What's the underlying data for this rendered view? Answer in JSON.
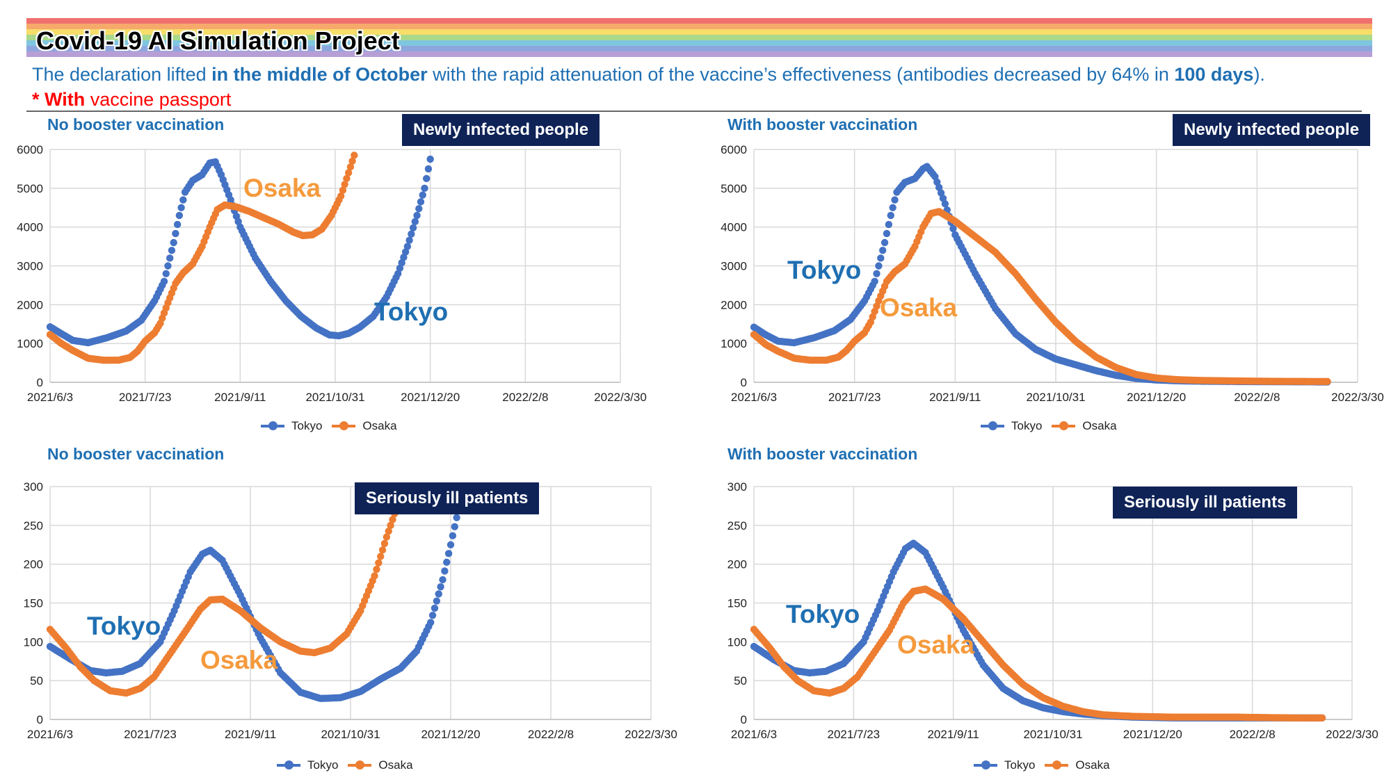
{
  "header": {
    "title": "Covid-19 AI Simulation Project",
    "desc_1": "The declaration lifted ",
    "desc_2": "in the middle of October",
    "desc_3": " with the rapid attenuation of the vaccine’s effectiveness (antibodies decreased by 64% in ",
    "desc_4": "100 days",
    "desc_5": ").",
    "note_star": "* With",
    "note_rest": " vaccine passport",
    "rainbow": [
      "#f07070",
      "#f6a96a",
      "#f7dd6a",
      "#a9d98a",
      "#7fc6e0",
      "#8ea6de",
      "#b79fd6"
    ]
  },
  "colors": {
    "tokyo": "#4472c4",
    "osaka": "#ed7d31",
    "tokyo_label": "#1f6fb2",
    "osaka_label": "#f59a3c"
  },
  "legend": {
    "tokyo": "Tokyo",
    "osaka": "Osaka"
  },
  "chart_data": [
    {
      "type": "scatter",
      "subtitle": "No booster vaccination",
      "badge": "Newly infected people",
      "x_ticks": [
        "2021/6/3",
        "2021/7/23",
        "2021/9/11",
        "2021/10/31",
        "2021/12/20",
        "2022/2/8",
        "2022/3/30"
      ],
      "xlim": [
        0,
        300
      ],
      "ylim": [
        0,
        6000
      ],
      "y_ticks": [
        "0",
        "1000",
        "2000",
        "3000",
        "4000",
        "5000",
        "6000"
      ],
      "callouts": {
        "tokyo": "Tokyo",
        "osaka": "Osaka"
      },
      "series": [
        {
          "name": "Tokyo",
          "points": [
            [
              0,
              1430
            ],
            [
              6,
              1250
            ],
            [
              12,
              1080
            ],
            [
              20,
              1020
            ],
            [
              30,
              1150
            ],
            [
              40,
              1320
            ],
            [
              48,
              1600
            ],
            [
              55,
              2100
            ],
            [
              60,
              2600
            ],
            [
              65,
              3600
            ],
            [
              68,
              4300
            ],
            [
              71,
              4900
            ],
            [
              75,
              5200
            ],
            [
              80,
              5350
            ],
            [
              84,
              5650
            ],
            [
              87,
              5680
            ],
            [
              90,
              5350
            ],
            [
              95,
              4700
            ],
            [
              100,
              4000
            ],
            [
              108,
              3200
            ],
            [
              116,
              2600
            ],
            [
              124,
              2100
            ],
            [
              132,
              1700
            ],
            [
              140,
              1400
            ],
            [
              147,
              1220
            ],
            [
              152,
              1200
            ],
            [
              157,
              1260
            ],
            [
              163,
              1420
            ],
            [
              170,
              1700
            ],
            [
              177,
              2200
            ],
            [
              183,
              2800
            ],
            [
              188,
              3500
            ],
            [
              193,
              4300
            ],
            [
              197,
              5000
            ],
            [
              200,
              5750
            ]
          ]
        },
        {
          "name": "Osaka",
          "points": [
            [
              0,
              1230
            ],
            [
              6,
              1000
            ],
            [
              12,
              820
            ],
            [
              20,
              620
            ],
            [
              28,
              570
            ],
            [
              36,
              570
            ],
            [
              42,
              640
            ],
            [
              46,
              800
            ],
            [
              50,
              1060
            ],
            [
              55,
              1280
            ],
            [
              58,
              1520
            ],
            [
              62,
              2050
            ],
            [
              66,
              2550
            ],
            [
              70,
              2820
            ],
            [
              75,
              3050
            ],
            [
              80,
              3500
            ],
            [
              84,
              4000
            ],
            [
              88,
              4450
            ],
            [
              92,
              4570
            ],
            [
              98,
              4520
            ],
            [
              105,
              4400
            ],
            [
              112,
              4250
            ],
            [
              120,
              4080
            ],
            [
              128,
              3870
            ],
            [
              133,
              3780
            ],
            [
              138,
              3800
            ],
            [
              143,
              3950
            ],
            [
              148,
              4300
            ],
            [
              153,
              4800
            ],
            [
              157,
              5400
            ],
            [
              160,
              5850
            ]
          ]
        }
      ]
    },
    {
      "type": "scatter",
      "subtitle": "With booster vaccination",
      "badge": "Newly infected people",
      "x_ticks": [
        "2021/6/3",
        "2021/7/23",
        "2021/9/11",
        "2021/10/31",
        "2021/12/20",
        "2022/2/8",
        "2022/3/30"
      ],
      "xlim": [
        0,
        300
      ],
      "ylim": [
        0,
        6000
      ],
      "y_ticks": [
        "0",
        "1000",
        "2000",
        "3000",
        "4000",
        "5000",
        "6000"
      ],
      "callouts": {
        "tokyo": "Tokyo",
        "osaka": "Osaka"
      },
      "series": [
        {
          "name": "Tokyo",
          "points": [
            [
              0,
              1420
            ],
            [
              6,
              1220
            ],
            [
              12,
              1060
            ],
            [
              20,
              1020
            ],
            [
              30,
              1150
            ],
            [
              40,
              1330
            ],
            [
              48,
              1620
            ],
            [
              55,
              2100
            ],
            [
              60,
              2600
            ],
            [
              65,
              3600
            ],
            [
              68,
              4300
            ],
            [
              71,
              4900
            ],
            [
              75,
              5150
            ],
            [
              80,
              5250
            ],
            [
              84,
              5500
            ],
            [
              86,
              5560
            ],
            [
              90,
              5300
            ],
            [
              95,
              4600
            ],
            [
              100,
              3800
            ],
            [
              110,
              2800
            ],
            [
              120,
              1900
            ],
            [
              130,
              1250
            ],
            [
              140,
              850
            ],
            [
              150,
              600
            ],
            [
              160,
              450
            ],
            [
              170,
              300
            ],
            [
              180,
              180
            ],
            [
              190,
              100
            ],
            [
              200,
              60
            ],
            [
              210,
              40
            ],
            [
              220,
              30
            ],
            [
              240,
              20
            ],
            [
              260,
              15
            ],
            [
              285,
              10
            ]
          ]
        },
        {
          "name": "Osaka",
          "points": [
            [
              0,
              1230
            ],
            [
              6,
              970
            ],
            [
              12,
              800
            ],
            [
              20,
              620
            ],
            [
              28,
              570
            ],
            [
              36,
              570
            ],
            [
              42,
              650
            ],
            [
              46,
              820
            ],
            [
              50,
              1060
            ],
            [
              55,
              1280
            ],
            [
              58,
              1550
            ],
            [
              62,
              2100
            ],
            [
              66,
              2600
            ],
            [
              70,
              2850
            ],
            [
              75,
              3050
            ],
            [
              80,
              3500
            ],
            [
              84,
              4000
            ],
            [
              88,
              4350
            ],
            [
              92,
              4400
            ],
            [
              100,
              4150
            ],
            [
              110,
              3750
            ],
            [
              120,
              3350
            ],
            [
              130,
              2800
            ],
            [
              140,
              2150
            ],
            [
              150,
              1550
            ],
            [
              160,
              1050
            ],
            [
              170,
              650
            ],
            [
              180,
              380
            ],
            [
              190,
              200
            ],
            [
              200,
              110
            ],
            [
              210,
              70
            ],
            [
              220,
              50
            ],
            [
              240,
              35
            ],
            [
              260,
              25
            ],
            [
              285,
              20
            ]
          ]
        }
      ]
    },
    {
      "type": "scatter",
      "subtitle": "No booster vaccination",
      "badge": "Seriously ill patients",
      "x_ticks": [
        "2021/6/3",
        "2021/7/23",
        "2021/9/11",
        "2021/10/31",
        "2021/12/20",
        "2022/2/8",
        "2022/3/30"
      ],
      "xlim": [
        0,
        300
      ],
      "ylim": [
        0,
        300
      ],
      "y_ticks": [
        "0",
        "50",
        "100",
        "150",
        "200",
        "250",
        "300"
      ],
      "callouts": {
        "tokyo": "Tokyo",
        "osaka": "Osaka"
      },
      "series": [
        {
          "name": "Tokyo",
          "points": [
            [
              0,
              94
            ],
            [
              10,
              78
            ],
            [
              20,
              63
            ],
            [
              28,
              60
            ],
            [
              36,
              62
            ],
            [
              45,
              72
            ],
            [
              55,
              100
            ],
            [
              62,
              140
            ],
            [
              70,
              190
            ],
            [
              76,
              213
            ],
            [
              80,
              218
            ],
            [
              86,
              205
            ],
            [
              95,
              160
            ],
            [
              105,
              105
            ],
            [
              115,
              60
            ],
            [
              125,
              35
            ],
            [
              135,
              27
            ],
            [
              145,
              28
            ],
            [
              155,
              36
            ],
            [
              165,
              52
            ],
            [
              175,
              66
            ],
            [
              183,
              88
            ],
            [
              190,
              125
            ],
            [
              196,
              180
            ],
            [
              200,
              225
            ],
            [
              203,
              260
            ]
          ]
        },
        {
          "name": "Osaka",
          "points": [
            [
              0,
              116
            ],
            [
              8,
              92
            ],
            [
              15,
              68
            ],
            [
              22,
              50
            ],
            [
              30,
              37
            ],
            [
              38,
              34
            ],
            [
              45,
              40
            ],
            [
              52,
              55
            ],
            [
              60,
              85
            ],
            [
              68,
              115
            ],
            [
              75,
              142
            ],
            [
              80,
              154
            ],
            [
              86,
              155
            ],
            [
              95,
              140
            ],
            [
              105,
              118
            ],
            [
              115,
              100
            ],
            [
              125,
              88
            ],
            [
              132,
              86
            ],
            [
              140,
              92
            ],
            [
              148,
              110
            ],
            [
              155,
              140
            ],
            [
              162,
              185
            ],
            [
              168,
              235
            ],
            [
              172,
              265
            ]
          ]
        }
      ]
    },
    {
      "type": "scatter",
      "subtitle": "With booster vaccination",
      "badge": "Seriously ill patients",
      "x_ticks": [
        "2021/6/3",
        "2021/7/23",
        "2021/9/11",
        "2021/10/31",
        "2021/12/20",
        "2022/2/8",
        "2022/3/30"
      ],
      "xlim": [
        0,
        300
      ],
      "ylim": [
        0,
        300
      ],
      "y_ticks": [
        "0",
        "50",
        "100",
        "150",
        "200",
        "250",
        "300"
      ],
      "callouts": {
        "tokyo": "Tokyo",
        "osaka": "Osaka"
      },
      "series": [
        {
          "name": "Tokyo",
          "points": [
            [
              0,
              94
            ],
            [
              10,
              77
            ],
            [
              20,
              63
            ],
            [
              28,
              60
            ],
            [
              36,
              62
            ],
            [
              45,
              72
            ],
            [
              55,
              100
            ],
            [
              62,
              140
            ],
            [
              70,
              190
            ],
            [
              76,
              220
            ],
            [
              80,
              227
            ],
            [
              86,
              215
            ],
            [
              95,
              170
            ],
            [
              105,
              115
            ],
            [
              115,
              70
            ],
            [
              125,
              40
            ],
            [
              135,
              24
            ],
            [
              145,
              15
            ],
            [
              155,
              10
            ],
            [
              165,
              7
            ],
            [
              175,
              5
            ],
            [
              190,
              3
            ],
            [
              210,
              2
            ],
            [
              240,
              2
            ],
            [
              270,
              2
            ],
            [
              285,
              2
            ]
          ]
        },
        {
          "name": "Osaka",
          "points": [
            [
              0,
              116
            ],
            [
              8,
              92
            ],
            [
              15,
              68
            ],
            [
              22,
              50
            ],
            [
              30,
              37
            ],
            [
              38,
              34
            ],
            [
              45,
              40
            ],
            [
              52,
              55
            ],
            [
              60,
              85
            ],
            [
              68,
              115
            ],
            [
              75,
              150
            ],
            [
              80,
              165
            ],
            [
              86,
              168
            ],
            [
              95,
              155
            ],
            [
              105,
              130
            ],
            [
              115,
              100
            ],
            [
              125,
              70
            ],
            [
              135,
              45
            ],
            [
              145,
              28
            ],
            [
              155,
              17
            ],
            [
              165,
              10
            ],
            [
              175,
              6
            ],
            [
              190,
              4
            ],
            [
              210,
              3
            ],
            [
              240,
              3
            ],
            [
              270,
              2
            ],
            [
              285,
              2
            ]
          ]
        }
      ]
    }
  ]
}
